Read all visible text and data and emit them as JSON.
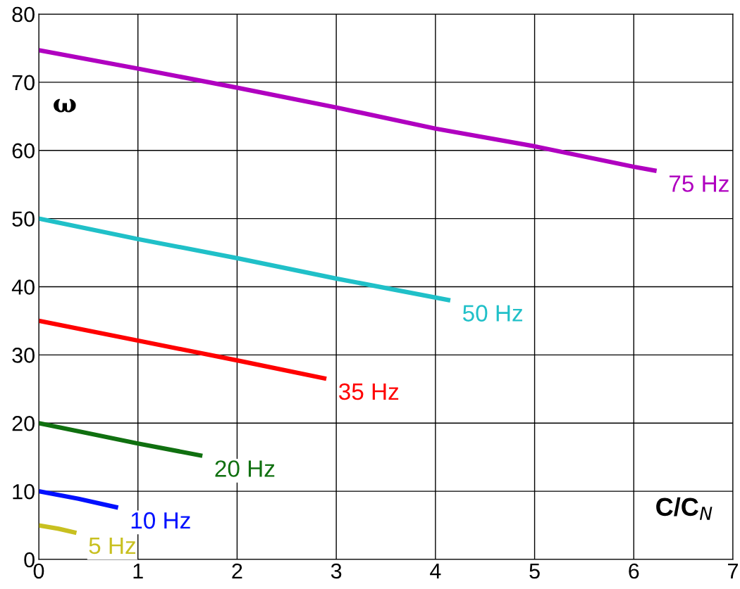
{
  "chart_data": {
    "type": "line",
    "xlabel": "C/C$_{N}$",
    "ylabel": "ω",
    "xlim": [
      0,
      7
    ],
    "xticks": [
      0,
      1,
      2,
      3,
      4,
      5,
      6,
      7
    ],
    "ylim": [
      0,
      80
    ],
    "yticks": [
      0,
      10,
      20,
      30,
      40,
      50,
      60,
      70,
      80
    ],
    "grid": true,
    "legend": false,
    "marker": "none",
    "line_style": "solid",
    "series": [
      {
        "name": "75 Hz",
        "color": "#b000c0",
        "x": [
          0,
          1,
          2,
          3,
          4,
          5,
          6,
          6.23
        ],
        "values": [
          74.7,
          72,
          69.2,
          66.3,
          63.2,
          60.6,
          57.6,
          57
        ]
      },
      {
        "name": "50 Hz",
        "color": "#20c0c8",
        "x": [
          0,
          1,
          2,
          3,
          4.15
        ],
        "values": [
          50,
          47,
          44.2,
          41.2,
          38
        ]
      },
      {
        "name": "35 Hz",
        "color": "#ff0000",
        "x": [
          0,
          1,
          2,
          2.9
        ],
        "values": [
          35,
          32.1,
          29.2,
          26.5
        ]
      },
      {
        "name": "20 Hz",
        "color": "#107010",
        "x": [
          0,
          0.5,
          1,
          1.65
        ],
        "values": [
          20,
          18.5,
          17,
          15.2
        ]
      },
      {
        "name": "10 Hz",
        "color": "#0010ff",
        "x": [
          0,
          0.4,
          0.8
        ],
        "values": [
          10,
          8.9,
          7.6
        ]
      },
      {
        "name": "5 Hz",
        "color": "#c8c020",
        "x": [
          0,
          0.2,
          0.38
        ],
        "values": [
          5,
          4.5,
          3.9
        ]
      }
    ]
  }
}
